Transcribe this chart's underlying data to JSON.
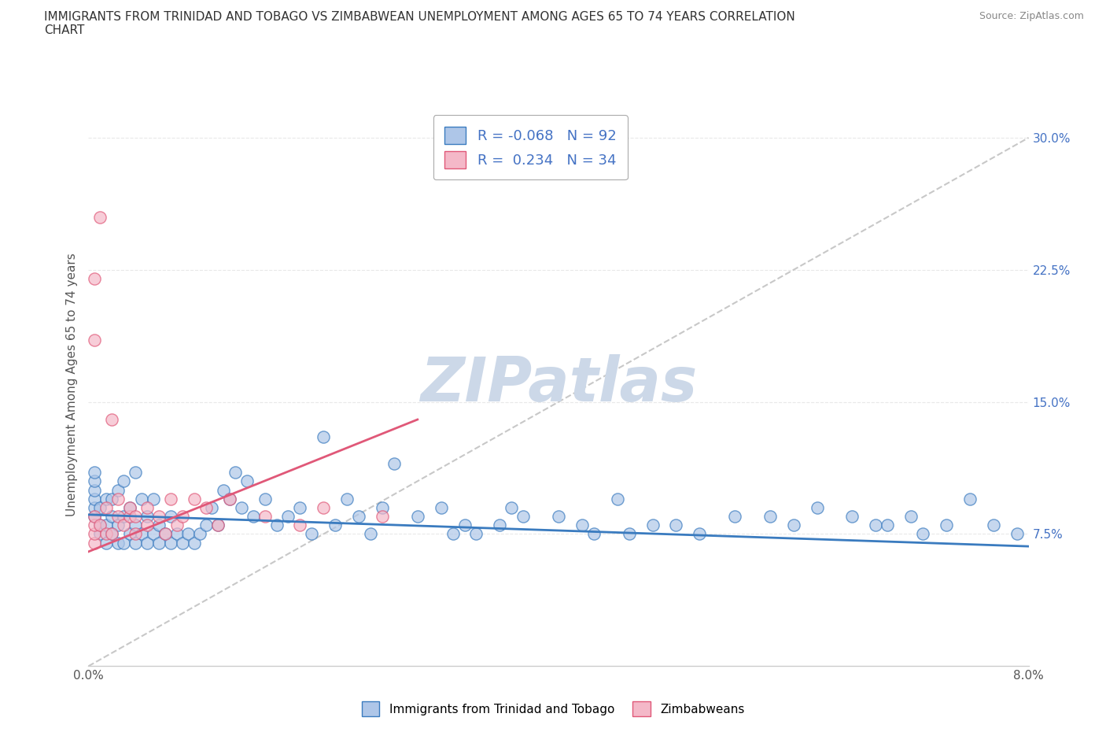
{
  "title": "IMMIGRANTS FROM TRINIDAD AND TOBAGO VS ZIMBABWEAN UNEMPLOYMENT AMONG AGES 65 TO 74 YEARS CORRELATION\nCHART",
  "source_text": "Source: ZipAtlas.com",
  "ylabel": "Unemployment Among Ages 65 to 74 years",
  "x_min": 0.0,
  "x_max": 8.0,
  "y_min": 0.0,
  "y_max": 32.0,
  "x_ticks": [
    0.0,
    2.0,
    4.0,
    6.0,
    8.0
  ],
  "y_ticks_right": [
    7.5,
    15.0,
    22.5,
    30.0
  ],
  "y_tick_labels_right": [
    "7.5%",
    "15.0%",
    "22.5%",
    "30.0%"
  ],
  "blue_color": "#aec6e8",
  "pink_color": "#f4b8c8",
  "blue_line_color": "#3a7bbf",
  "pink_line_color": "#e05878",
  "trend_line_color": "#c8c8c8",
  "grid_color": "#e8e8e8",
  "watermark_color": "#ccd8e8",
  "R_blue": -0.068,
  "N_blue": 92,
  "R_pink": 0.234,
  "N_pink": 34,
  "legend_label_blue": "Immigrants from Trinidad and Tobago",
  "legend_label_pink": "Zimbabweans",
  "legend_R_color": "#4472c4",
  "blue_scatter_x": [
    0.05,
    0.05,
    0.05,
    0.05,
    0.05,
    0.05,
    0.1,
    0.1,
    0.1,
    0.15,
    0.15,
    0.15,
    0.2,
    0.2,
    0.2,
    0.25,
    0.25,
    0.25,
    0.3,
    0.3,
    0.3,
    0.35,
    0.35,
    0.4,
    0.4,
    0.4,
    0.45,
    0.45,
    0.5,
    0.5,
    0.55,
    0.55,
    0.6,
    0.6,
    0.65,
    0.7,
    0.7,
    0.75,
    0.8,
    0.85,
    0.9,
    0.95,
    1.0,
    1.05,
    1.1,
    1.15,
    1.2,
    1.25,
    1.3,
    1.35,
    1.4,
    1.5,
    1.6,
    1.7,
    1.8,
    1.9,
    2.0,
    2.1,
    2.2,
    2.3,
    2.4,
    2.5,
    2.6,
    2.8,
    3.0,
    3.1,
    3.2,
    3.3,
    3.5,
    3.6,
    3.7,
    4.0,
    4.2,
    4.3,
    4.5,
    4.6,
    4.8,
    5.0,
    5.2,
    5.5,
    5.8,
    6.0,
    6.2,
    6.5,
    6.7,
    6.8,
    7.0,
    7.1,
    7.3,
    7.5,
    7.7,
    7.9
  ],
  "blue_scatter_y": [
    8.5,
    9.0,
    9.5,
    10.0,
    10.5,
    11.0,
    7.5,
    8.0,
    9.0,
    7.0,
    8.0,
    9.5,
    7.5,
    8.5,
    9.5,
    7.0,
    8.0,
    10.0,
    7.0,
    8.5,
    10.5,
    7.5,
    9.0,
    7.0,
    8.0,
    11.0,
    7.5,
    9.5,
    7.0,
    8.5,
    7.5,
    9.5,
    7.0,
    8.0,
    7.5,
    7.0,
    8.5,
    7.5,
    7.0,
    7.5,
    7.0,
    7.5,
    8.0,
    9.0,
    8.0,
    10.0,
    9.5,
    11.0,
    9.0,
    10.5,
    8.5,
    9.5,
    8.0,
    8.5,
    9.0,
    7.5,
    13.0,
    8.0,
    9.5,
    8.5,
    7.5,
    9.0,
    11.5,
    8.5,
    9.0,
    7.5,
    8.0,
    7.5,
    8.0,
    9.0,
    8.5,
    8.5,
    8.0,
    7.5,
    9.5,
    7.5,
    8.0,
    8.0,
    7.5,
    8.5,
    8.5,
    8.0,
    9.0,
    8.5,
    8.0,
    8.0,
    8.5,
    7.5,
    8.0,
    9.5,
    8.0,
    7.5
  ],
  "pink_scatter_x": [
    0.05,
    0.05,
    0.05,
    0.05,
    0.05,
    0.05,
    0.1,
    0.1,
    0.15,
    0.15,
    0.2,
    0.2,
    0.25,
    0.25,
    0.3,
    0.35,
    0.35,
    0.4,
    0.4,
    0.5,
    0.5,
    0.6,
    0.65,
    0.7,
    0.75,
    0.8,
    0.9,
    1.0,
    1.1,
    1.2,
    1.5,
    1.8,
    2.0,
    2.5
  ],
  "pink_scatter_y": [
    7.0,
    7.5,
    8.0,
    8.5,
    18.5,
    22.0,
    8.0,
    25.5,
    7.5,
    9.0,
    7.5,
    14.0,
    8.5,
    9.5,
    8.0,
    8.5,
    9.0,
    7.5,
    8.5,
    8.0,
    9.0,
    8.5,
    7.5,
    9.5,
    8.0,
    8.5,
    9.5,
    9.0,
    8.0,
    9.5,
    8.5,
    8.0,
    9.0,
    8.5
  ],
  "blue_trend_x0": 0.0,
  "blue_trend_x1": 8.0,
  "blue_trend_y0": 8.6,
  "blue_trend_y1": 6.8,
  "pink_trend_x0": 0.0,
  "pink_trend_x1": 2.8,
  "pink_trend_y0": 6.5,
  "pink_trend_y1": 14.0,
  "gray_dash_x0": 0.0,
  "gray_dash_x1": 8.0,
  "gray_dash_y0": 0.0,
  "gray_dash_y1": 30.0
}
